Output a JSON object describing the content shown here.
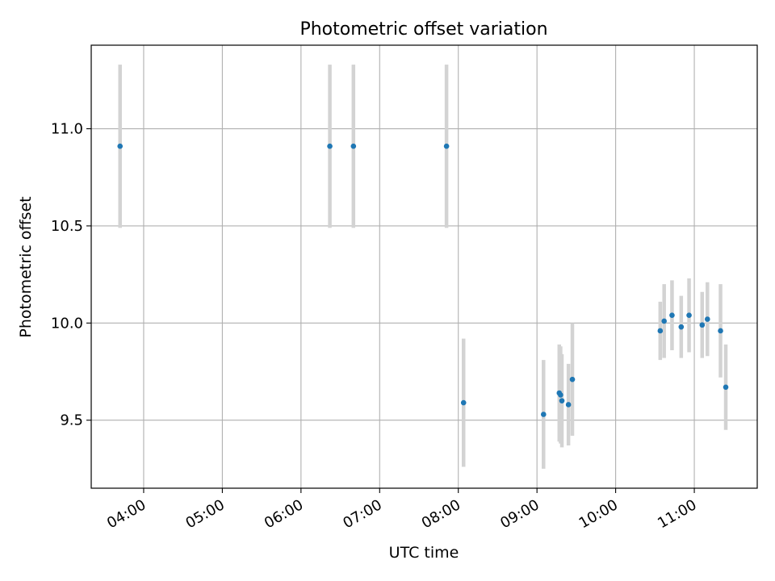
{
  "chart_data": {
    "type": "scatter",
    "title": "Photometric offset variation",
    "xlabel": "UTC time",
    "ylabel": "Photometric offset",
    "x_unit": "UTC time",
    "xlim": [
      "03:20",
      "11:48"
    ],
    "ylim": [
      9.15,
      11.43
    ],
    "x_ticks": [
      "04:00",
      "05:00",
      "06:00",
      "07:00",
      "08:00",
      "09:00",
      "10:00",
      "11:00"
    ],
    "y_ticks": [
      9.5,
      10.0,
      10.5,
      11.0
    ],
    "y_tick_labels": [
      "9.5",
      "10.0",
      "10.5",
      "11.0"
    ],
    "grid": true,
    "legend": "none",
    "colors": {
      "marker": "#1f77b4",
      "errorbar": "#d3d3d3",
      "grid": "#b0b0b0"
    },
    "points": [
      {
        "x": "03:42",
        "y": 10.91,
        "yerr": 0.42
      },
      {
        "x": "06:22",
        "y": 10.91,
        "yerr": 0.42
      },
      {
        "x": "06:40",
        "y": 10.91,
        "yerr": 0.42
      },
      {
        "x": "07:51",
        "y": 10.91,
        "yerr": 0.42
      },
      {
        "x": "08:04",
        "y": 9.59,
        "yerr": 0.33
      },
      {
        "x": "09:05",
        "y": 9.53,
        "yerr": 0.28
      },
      {
        "x": "09:17",
        "y": 9.64,
        "yerr": 0.25
      },
      {
        "x": "09:18",
        "y": 9.63,
        "yerr": 0.25
      },
      {
        "x": "09:19",
        "y": 9.6,
        "yerr": 0.24
      },
      {
        "x": "09:24",
        "y": 9.58,
        "yerr": 0.21
      },
      {
        "x": "09:27",
        "y": 9.71,
        "yerr": 0.29
      },
      {
        "x": "10:34",
        "y": 9.96,
        "yerr": 0.15
      },
      {
        "x": "10:37",
        "y": 10.01,
        "yerr": 0.19
      },
      {
        "x": "10:43",
        "y": 10.04,
        "yerr": 0.18
      },
      {
        "x": "10:50",
        "y": 9.98,
        "yerr": 0.16
      },
      {
        "x": "10:56",
        "y": 10.04,
        "yerr": 0.19
      },
      {
        "x": "11:06",
        "y": 9.99,
        "yerr": 0.17
      },
      {
        "x": "11:10",
        "y": 10.02,
        "yerr": 0.19
      },
      {
        "x": "11:20",
        "y": 9.96,
        "yerr": 0.24
      },
      {
        "x": "11:24",
        "y": 9.67,
        "yerr": 0.22
      }
    ]
  }
}
